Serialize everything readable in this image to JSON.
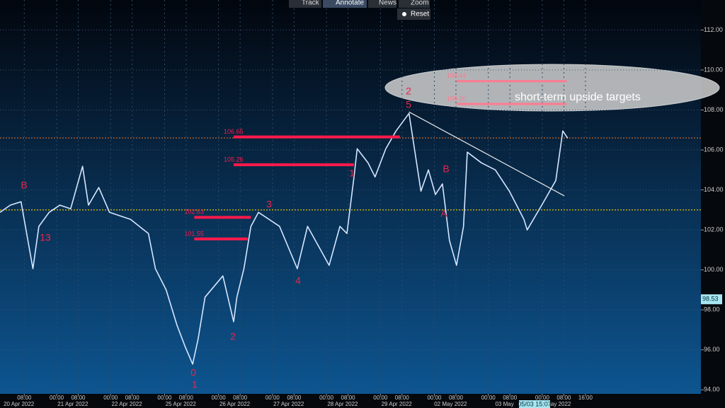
{
  "toolbar": {
    "buttons": [
      "Track",
      "Annotate",
      "News",
      "Zoom",
      "Reset"
    ]
  },
  "chart_data": {
    "type": "line",
    "x": [
      -0.35,
      -0.16,
      0.04,
      0.26,
      0.37,
      0.56,
      0.76,
      0.96,
      1.18,
      1.29,
      1.48,
      1.68,
      2.07,
      2.4,
      2.53,
      2.73,
      2.93,
      3.08,
      3.22,
      3.32,
      3.45,
      3.78,
      3.98,
      4.04,
      4.17,
      4.3,
      4.44,
      4.83,
      5.16,
      5.35,
      5.75,
      5.95,
      6.08,
      6.21,
      6.27,
      6.47,
      6.6,
      6.8,
      6.99,
      7.23,
      7.45,
      7.59,
      7.72,
      7.85,
      7.98,
      8.11,
      8.24,
      8.31,
      8.57,
      8.83,
      9.09,
      9.36,
      9.42,
      9.69,
      9.95,
      10.08,
      10.17
    ],
    "series": [
      {
        "color": "#d6e6ff",
        "values": [
          102.88,
          103.24,
          103.41,
          100.06,
          102.18,
          102.88,
          103.24,
          103.06,
          105.18,
          103.24,
          104.12,
          102.88,
          102.53,
          101.82,
          100.06,
          99.0,
          97.23,
          96.17,
          95.29,
          96.52,
          98.64,
          99.7,
          97.41,
          98.64,
          100.06,
          102.18,
          102.88,
          102.18,
          100.06,
          102.18,
          100.23,
          102.18,
          101.82,
          104.65,
          106.06,
          105.36,
          104.65,
          106.06,
          106.95,
          107.83,
          103.94,
          105.0,
          103.77,
          104.3,
          101.47,
          100.23,
          102.18,
          105.89,
          105.36,
          105.0,
          103.94,
          102.53,
          102.0,
          103.24,
          104.47,
          106.95,
          106.59
        ]
      }
    ],
    "xlim": [
      -0.35,
      12.64
    ],
    "ylim": [
      93.8,
      113.5
    ],
    "yticks": [
      {
        "value": 94,
        "label": "94.00"
      },
      {
        "value": 96,
        "label": "96.00"
      },
      {
        "value": 98,
        "label": "98.00"
      },
      {
        "value": 100,
        "label": "100.00"
      },
      {
        "value": 102,
        "label": "102.00"
      },
      {
        "value": 104,
        "label": "104.00"
      },
      {
        "value": 106,
        "label": "106.00"
      },
      {
        "value": 108,
        "label": "108.00"
      },
      {
        "value": 110,
        "label": "110.00"
      },
      {
        "value": 112,
        "label": "112.00"
      }
    ],
    "xticks": [
      {
        "value": 0.1,
        "label": "08:00"
      },
      {
        "value": 0.7,
        "label": "00:00"
      },
      {
        "value": 1.1,
        "label": "08:00"
      },
      {
        "value": 1.7,
        "label": "00:00"
      },
      {
        "value": 2.1,
        "label": "08:00"
      },
      {
        "value": 2.7,
        "label": "00:00"
      },
      {
        "value": 3.1,
        "label": "08:00"
      },
      {
        "value": 3.7,
        "label": "00:00"
      },
      {
        "value": 4.1,
        "label": "08:00"
      },
      {
        "value": 4.7,
        "label": "00:00"
      },
      {
        "value": 5.1,
        "label": "08:00"
      },
      {
        "value": 5.7,
        "label": "00:00"
      },
      {
        "value": 6.1,
        "label": "08:00"
      },
      {
        "value": 6.7,
        "label": "00:00"
      },
      {
        "value": 7.1,
        "label": "08:00"
      },
      {
        "value": 7.7,
        "label": "00:00"
      },
      {
        "value": 8.1,
        "label": "08:00"
      },
      {
        "value": 8.7,
        "label": "00:00"
      },
      {
        "value": 9.1,
        "label": "08:00"
      },
      {
        "value": 9.7,
        "label": "00:00"
      },
      {
        "value": 10.1,
        "label": "08:00"
      },
      {
        "value": 10.5,
        "label": "16:00"
      }
    ],
    "categories": [
      "20 Apr 2022",
      "21 Apr 2022",
      "22 Apr 2022",
      "25 Apr 2022",
      "26 Apr 2022",
      "27 Apr 2022",
      "28 Apr 2022",
      "29 Apr 2022",
      "02 May 2022",
      "03 May",
      "May 2022"
    ],
    "grid": true,
    "levels": [
      {
        "value": 106.65,
        "label": "106.65",
        "from": 3.98,
        "to": 7.06,
        "color": "#ff1a4b"
      },
      {
        "value": 105.26,
        "label": "105.26",
        "from": 3.98,
        "to": 6.21,
        "color": "#ff1a4b"
      },
      {
        "value": 102.63,
        "label": "102.63",
        "from": 3.25,
        "to": 4.3,
        "color": "#ff1a4b"
      },
      {
        "value": 101.55,
        "label": "101.55",
        "from": 3.25,
        "to": 4.24,
        "color": "#ff1a4b"
      },
      {
        "value": 109.44,
        "label": "109.44",
        "from": 8.11,
        "to": 10.15,
        "color": "#ff7a90"
      },
      {
        "value": 108.3,
        "label": "108.30",
        "from": 8.11,
        "to": 10.15,
        "color": "#ff7a90"
      }
    ],
    "reference_lines": [
      {
        "value": 106.6,
        "color": "#c0662a"
      },
      {
        "value": 103.0,
        "color": "#e6c200"
      }
    ],
    "trendline": {
      "x": [
        7.23,
        10.11
      ],
      "values": [
        107.9,
        103.7
      ]
    },
    "annotation": "short-term upside targets",
    "wave_labels": [
      "2",
      "5",
      "1",
      "0",
      "2",
      "3",
      "4",
      "B",
      "13",
      "B",
      "A",
      "1"
    ],
    "last_price": 98.53,
    "cursor_label": "05/03 15:07"
  }
}
